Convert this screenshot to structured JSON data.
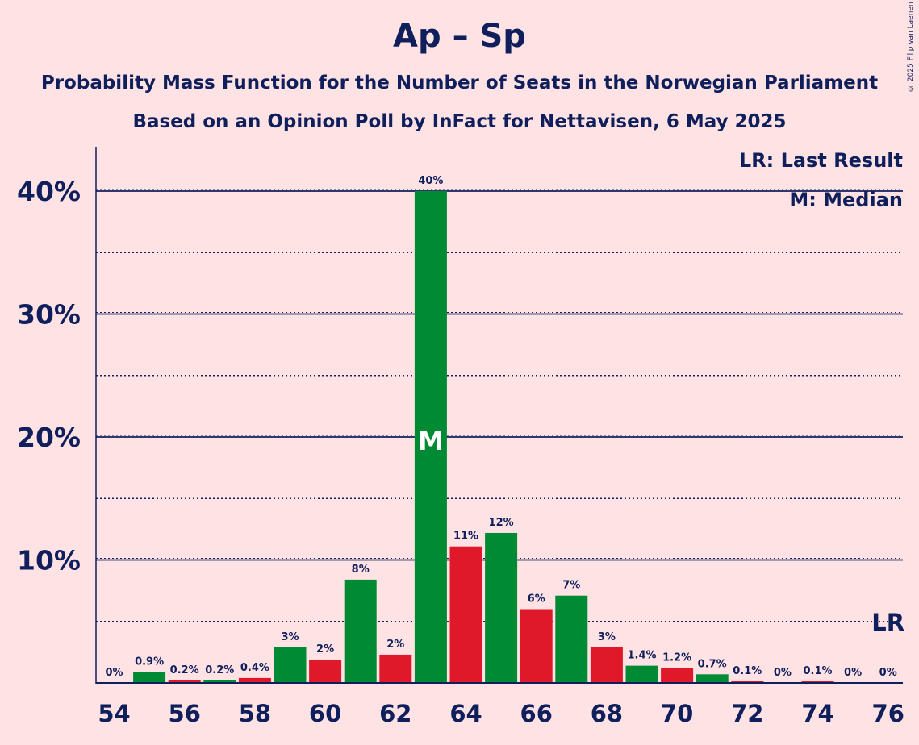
{
  "header": {
    "title": "Ap – Sp",
    "subtitle": "Probability Mass Function for the Number of Seats in the Norwegian Parliament",
    "subtitle2": "Based on an Opinion Poll by InFact for Nettavisen, 6 May 2025",
    "copyright": "© 2025 Filip van Laenen"
  },
  "legend": {
    "last_result": "LR: Last Result",
    "median": "M: Median"
  },
  "colors": {
    "background": "#FFE2E4",
    "text": "#0F1F5C",
    "green": "#008A33",
    "red": "#E0192A"
  },
  "chart_data": {
    "type": "bar",
    "categories": [
      54,
      55,
      56,
      57,
      58,
      59,
      60,
      61,
      62,
      63,
      64,
      65,
      66,
      67,
      68,
      69,
      70,
      71,
      72,
      73,
      74,
      75,
      76
    ],
    "values": [
      0,
      0.9,
      0.2,
      0.2,
      0.4,
      2.9,
      1.9,
      8.4,
      2.3,
      40.0,
      11.1,
      12.2,
      6.0,
      7.1,
      2.9,
      1.4,
      1.2,
      0.7,
      0.1,
      0,
      0.1,
      0,
      0
    ],
    "labels": [
      "0%",
      "0.9%",
      "0.2%",
      "0.2%",
      "0.4%",
      "3%",
      "2%",
      "8%",
      "2%",
      "40%",
      "11%",
      "12%",
      "6%",
      "7%",
      "3%",
      "1.4%",
      "1.2%",
      "0.7%",
      "0.1%",
      "0%",
      "0.1%",
      "0%",
      "0%"
    ],
    "bar_colors": [
      "green",
      "green",
      "red",
      "green",
      "red",
      "green",
      "red",
      "green",
      "red",
      "green",
      "red",
      "green",
      "red",
      "green",
      "red",
      "green",
      "red",
      "green",
      "red",
      "green",
      "red",
      "green",
      "red"
    ],
    "x_tick_labels": [
      "54",
      "56",
      "58",
      "60",
      "62",
      "64",
      "66",
      "68",
      "70",
      "72",
      "74",
      "76"
    ],
    "y_ticks": [
      10,
      20,
      30,
      40
    ],
    "y_tick_labels": [
      "10%",
      "20%",
      "30%",
      "40%"
    ],
    "y_minor_ticks": [
      5,
      15,
      25,
      35
    ],
    "ylim": [
      0,
      43.6
    ],
    "median": 63,
    "median_label": "M",
    "last_result": 76,
    "last_result_label": "LR",
    "grid": true
  }
}
